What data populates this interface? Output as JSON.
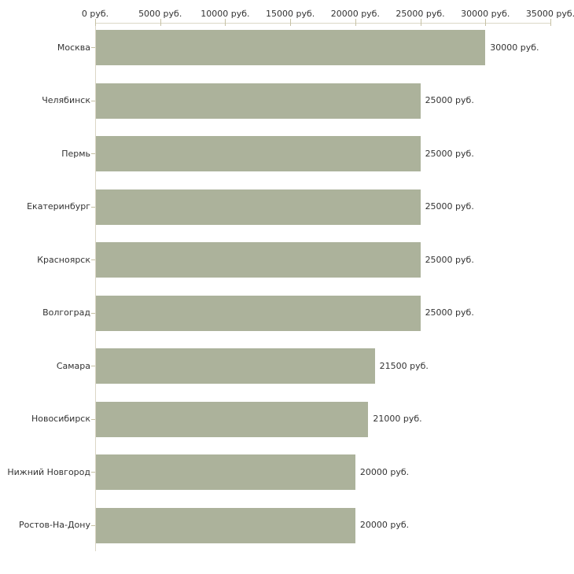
{
  "chart_data": {
    "type": "bar",
    "orientation": "horizontal",
    "title": "",
    "xlabel": "",
    "ylabel": "",
    "unit": "руб.",
    "grid": false,
    "legend": "none",
    "xlim": [
      0,
      35000
    ],
    "x_ticks": [
      0,
      5000,
      10000,
      15000,
      20000,
      25000,
      30000,
      35000
    ],
    "x_tick_labels": [
      "0 руб.",
      "5000 руб.",
      "10000 руб.",
      "15000 руб.",
      "20000 руб.",
      "25000 руб.",
      "30000 руб.",
      "35000 руб."
    ],
    "categories": [
      "Москва",
      "Челябинск",
      "Пермь",
      "Екатеринбург",
      "Красноярск",
      "Волгоград",
      "Самара",
      "Новосибирск",
      "Нижний Новгород",
      "Ростов-На-Дону"
    ],
    "values": [
      30000,
      25000,
      25000,
      25000,
      25000,
      25000,
      21500,
      21000,
      20000,
      20000
    ],
    "value_labels": [
      "30000 руб.",
      "25000 руб.",
      "25000 руб.",
      "25000 руб.",
      "25000 руб.",
      "25000 руб.",
      "21500 руб.",
      "21000 руб.",
      "20000 руб.",
      "20000 руб."
    ],
    "colors": {
      "bar": "#acb29b",
      "axis_line": "#dbd7c6",
      "tick": "#c6c1a4",
      "text": "#333333",
      "background": "#ffffff"
    }
  }
}
